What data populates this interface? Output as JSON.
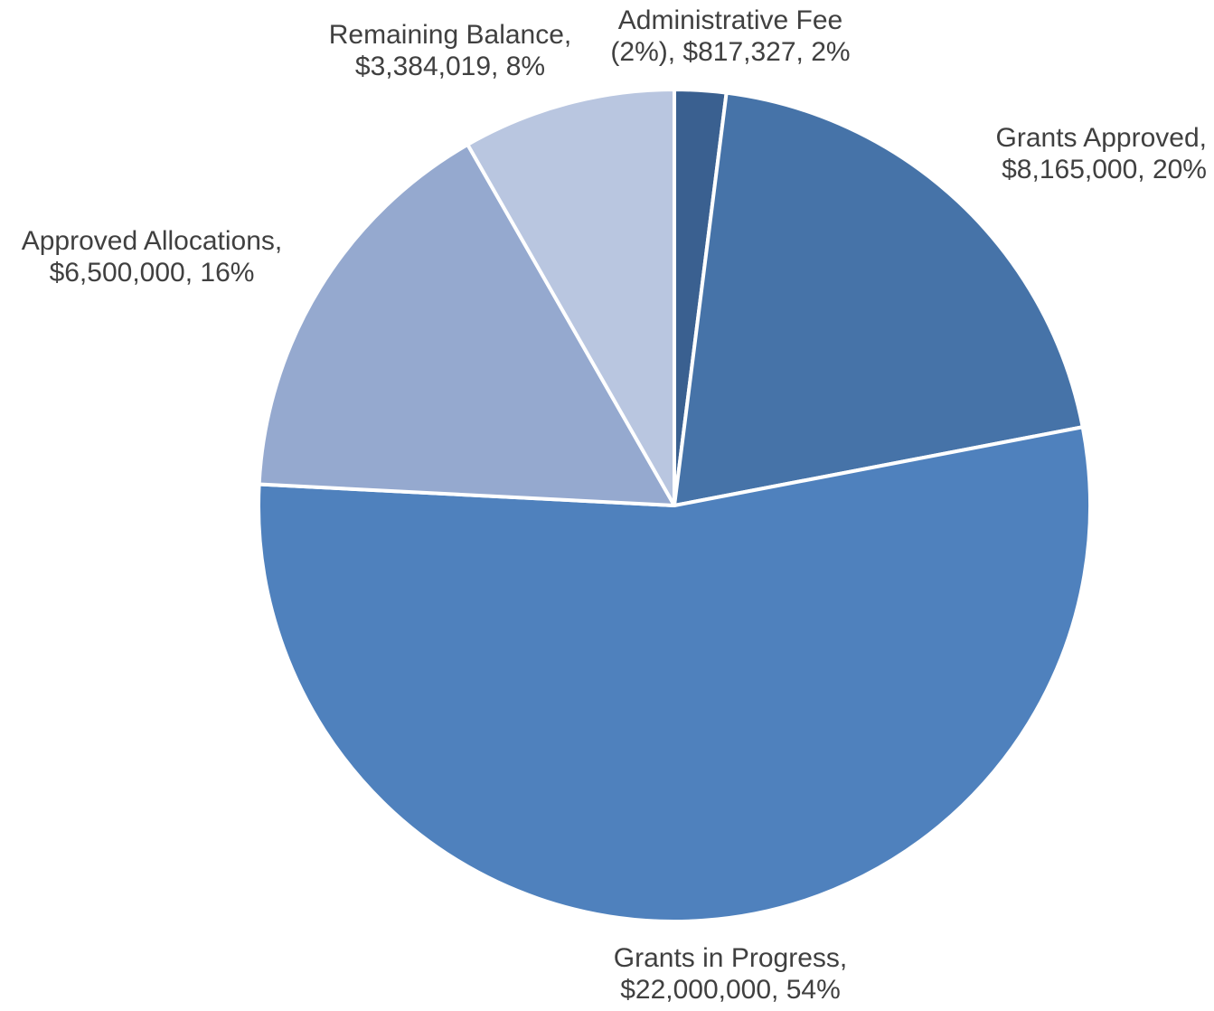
{
  "chart_data": {
    "type": "pie",
    "title": "",
    "start_angle_deg": 0,
    "direction": "clockwise",
    "slice_border_color": "#ffffff",
    "label_color": "#404040",
    "slices": [
      {
        "name": "Administrative Fee (2%)",
        "value": 817327,
        "percent": 2,
        "color": "#3a6090",
        "label_lines": [
          "Administrative Fee",
          "(2%), $817,327, 2%"
        ]
      },
      {
        "name": "Grants Approved",
        "value": 8165000,
        "percent": 20,
        "color": "#4673a8",
        "label_lines": [
          "Grants Approved,",
          "$8,165,000, 20%"
        ]
      },
      {
        "name": "Grants in Progress",
        "value": 22000000,
        "percent": 54,
        "color": "#4f81bd",
        "label_lines": [
          "Grants in Progress,",
          "$22,000,000, 54%"
        ]
      },
      {
        "name": "Approved Allocations",
        "value": 6500000,
        "percent": 16,
        "color": "#95a9cf",
        "label_lines": [
          "Approved Allocations,",
          "$6,500,000, 16%"
        ]
      },
      {
        "name": "Remaining Balance",
        "value": 3384019,
        "percent": 8,
        "color": "#b9c6e0",
        "label_lines": [
          "Remaining Balance,",
          "$3,384,019, 8%"
        ]
      }
    ]
  }
}
